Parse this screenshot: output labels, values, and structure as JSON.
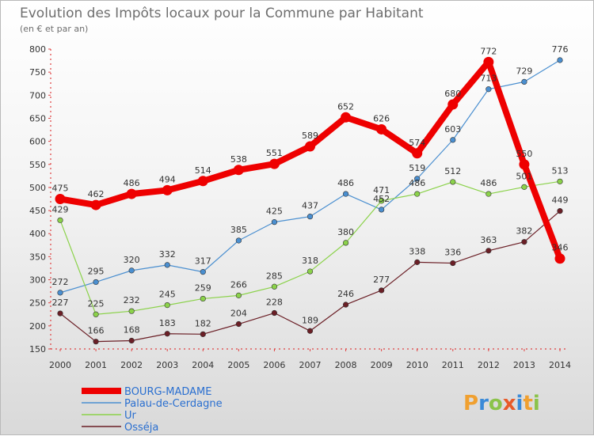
{
  "title": "Evolution des Impôts locaux pour la Commune par Habitant",
  "subtitle": "(en € et par an)",
  "logo": "Proxiti",
  "chart_data": {
    "type": "line",
    "title": "Evolution des Impôts locaux pour la Commune par Habitant",
    "subtitle": "(en € et par an)",
    "xlabel": "",
    "ylabel": "",
    "ylim": [
      150,
      800
    ],
    "yticks": [
      150,
      200,
      250,
      300,
      350,
      400,
      450,
      500,
      550,
      600,
      650,
      700,
      750,
      800
    ],
    "categories": [
      "2000",
      "2001",
      "2002",
      "2003",
      "2004",
      "2005",
      "2006",
      "2007",
      "2008",
      "2009",
      "2010",
      "2011",
      "2012",
      "2013",
      "2014"
    ],
    "grid": false,
    "legend_position": "bottom-left",
    "series": [
      {
        "name": "BOURG-MADAME",
        "color": "#ee0000",
        "emphasis": true,
        "values": [
          475,
          462,
          486,
          494,
          514,
          538,
          551,
          589,
          652,
          626,
          574,
          680,
          772,
          550,
          346
        ]
      },
      {
        "name": "Palau-de-Cerdagne",
        "color": "#4a8fd0",
        "emphasis": false,
        "values": [
          272,
          295,
          320,
          332,
          317,
          385,
          425,
          437,
          486,
          452,
          519,
          603,
          713,
          729,
          776
        ]
      },
      {
        "name": "Ur",
        "color": "#8bd24a",
        "emphasis": false,
        "values": [
          429,
          225,
          232,
          245,
          259,
          266,
          285,
          318,
          380,
          471,
          486,
          512,
          486,
          501,
          513
        ]
      },
      {
        "name": "Osséja",
        "color": "#6b1f26",
        "emphasis": false,
        "values": [
          227,
          166,
          168,
          183,
          182,
          204,
          228,
          189,
          246,
          277,
          338,
          336,
          363,
          382,
          449
        ]
      }
    ]
  }
}
